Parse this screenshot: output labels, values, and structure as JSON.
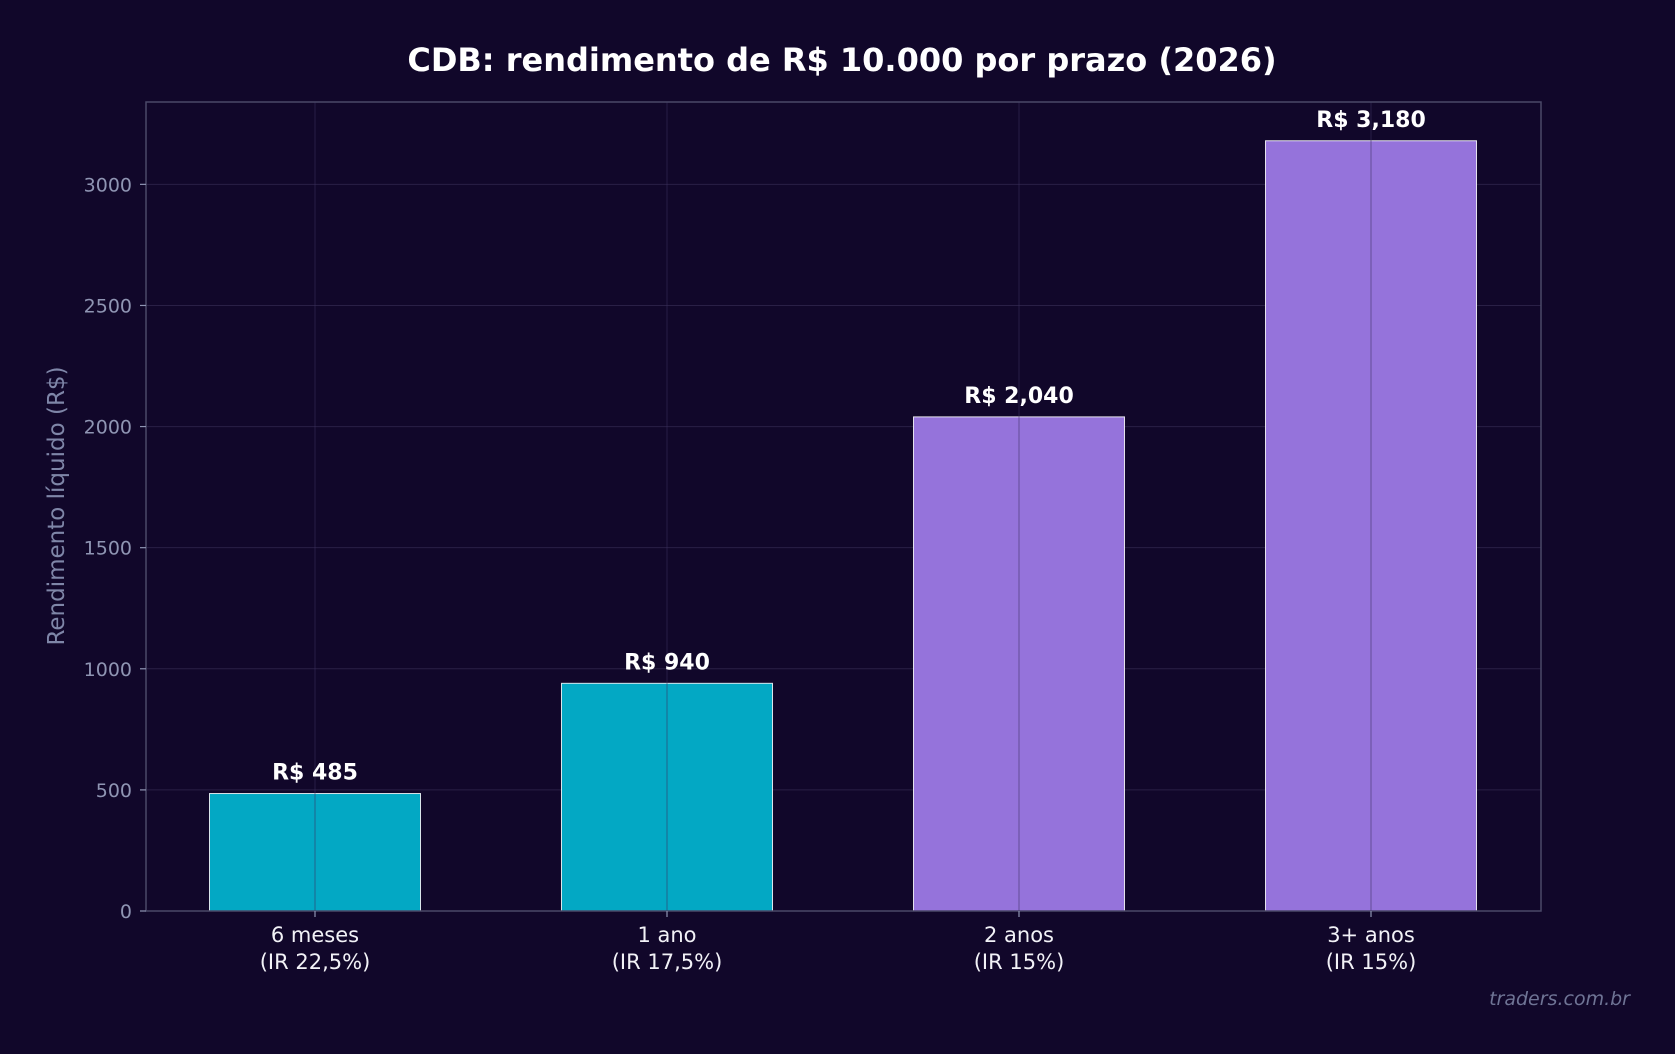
{
  "chart_data": {
    "type": "bar",
    "title": "CDB: rendimento de R$ 10.000 por prazo (2026)",
    "xlabel": "",
    "ylabel": "Rendimento líquido (R$)",
    "categories": [
      [
        "6 meses",
        "(IR 22,5%)"
      ],
      [
        "1 ano",
        "(IR 17,5%)"
      ],
      [
        "2 anos",
        "(IR 15%)"
      ],
      [
        "3+ anos",
        "(IR 15%)"
      ]
    ],
    "values": [
      485,
      940,
      2040,
      3180
    ],
    "value_labels": [
      "R$ 485",
      "R$ 940",
      "R$ 2,040",
      "R$ 3,180"
    ],
    "bar_colors": [
      "#03a8c4",
      "#03a8c4",
      "#9573db",
      "#9573db"
    ],
    "ylim": [
      0,
      3340
    ],
    "yticks": [
      0,
      500,
      1000,
      1500,
      2000,
      2500,
      3000
    ],
    "grid": true,
    "legend": "none"
  },
  "watermark": "traders.com.br",
  "colors": {
    "background": "#11072a",
    "plot_background": "#11072a",
    "frame": "#4a4868",
    "grid": "#2a2046",
    "bar_edge": "#ffffff"
  }
}
